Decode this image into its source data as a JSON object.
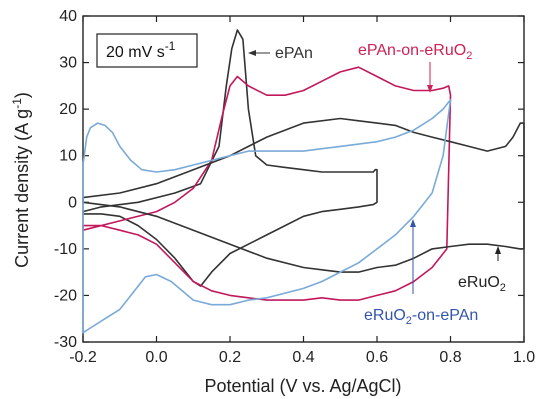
{
  "chart_data": {
    "type": "line",
    "xlabel": "Potential (V vs. Ag/AgCl)",
    "ylabel": "Current density (A g",
    "ylabel_sup": "-1",
    "ylabel_tail": ")",
    "xlim": [
      -0.2,
      1.0
    ],
    "ylim": [
      -30,
      40
    ],
    "xticks": [
      -0.2,
      0.0,
      0.2,
      0.4,
      0.6,
      0.8,
      1.0
    ],
    "xtick_labels": [
      "-0.2",
      "0.0",
      "0.2",
      "0.4",
      "0.6",
      "0.8",
      "1.0"
    ],
    "yticks": [
      -30,
      -20,
      -10,
      0,
      10,
      20,
      30,
      40
    ],
    "ytick_labels": [
      "-30",
      "-20",
      "-10",
      "0",
      "10",
      "20",
      "30",
      "40"
    ],
    "grid": false,
    "legend": "none",
    "scan_rate_label": {
      "text": "20 mV s",
      "sup": "-1"
    },
    "annotations": [
      {
        "series": "ePAn",
        "text": "ePAn",
        "color": "#333333"
      },
      {
        "series": "ePAn-on-eRuO2",
        "text": "ePAn-on-eRuO",
        "sub": "2",
        "color": "#cc2255"
      },
      {
        "series": "eRuO2",
        "text": "eRuO",
        "sub": "2",
        "color": "#222222"
      },
      {
        "series": "eRuO2-on-ePAn",
        "text": "eRuO",
        "sub": "2",
        "tail": "-on-ePAn",
        "color": "#3355aa"
      }
    ],
    "series": [
      {
        "name": "ePAn",
        "color": "#333333",
        "x": [
          -0.2,
          -0.15,
          -0.05,
          0.05,
          0.12,
          0.17,
          0.19,
          0.205,
          0.22,
          0.235,
          0.25,
          0.27,
          0.3,
          0.35,
          0.4,
          0.45,
          0.5,
          0.55,
          0.59,
          0.595,
          0.6,
          0.6,
          0.59,
          0.55,
          0.5,
          0.45,
          0.4,
          0.35,
          0.3,
          0.25,
          0.2,
          0.15,
          0.12,
          0.1,
          0.05,
          0.0,
          -0.05,
          -0.1,
          -0.15,
          -0.2,
          -0.2
        ],
        "y": [
          -2,
          -1,
          0,
          2,
          4,
          12,
          25,
          33,
          37,
          35,
          20,
          10,
          8,
          7.5,
          7,
          6.5,
          6.5,
          6.5,
          6.5,
          7,
          7,
          0,
          -0.5,
          -1,
          -1.5,
          -2,
          -3,
          -5,
          -7,
          -9,
          -11,
          -15,
          -18,
          -17,
          -12,
          -8,
          -5,
          -3,
          -2.5,
          -2.5,
          -2
        ]
      },
      {
        "name": "ePAn-on-eRuO2",
        "color": "#c2185b",
        "x": [
          -0.2,
          -0.1,
          0.0,
          0.05,
          0.1,
          0.15,
          0.18,
          0.2,
          0.22,
          0.25,
          0.3,
          0.35,
          0.4,
          0.45,
          0.5,
          0.55,
          0.6,
          0.65,
          0.7,
          0.75,
          0.78,
          0.795,
          0.8,
          0.79,
          0.75,
          0.7,
          0.65,
          0.6,
          0.55,
          0.5,
          0.45,
          0.4,
          0.35,
          0.3,
          0.25,
          0.2,
          0.15,
          0.1,
          0.05,
          0.0,
          -0.05,
          -0.1,
          -0.15,
          -0.2,
          -0.2
        ],
        "y": [
          -6,
          -4,
          -2,
          0,
          3,
          9,
          19,
          25,
          27,
          25,
          23,
          23,
          24,
          26,
          28,
          29,
          27,
          25,
          24,
          24,
          24.5,
          25,
          23,
          -10,
          -14,
          -17,
          -19,
          -20,
          -21,
          -21,
          -20.5,
          -21,
          -21,
          -21,
          -20.5,
          -20,
          -19,
          -17,
          -13,
          -9,
          -7,
          -6,
          -5,
          -5,
          -6
        ]
      },
      {
        "name": "eRuO2",
        "color": "#333333",
        "x": [
          -0.2,
          -0.1,
          0.0,
          0.1,
          0.2,
          0.3,
          0.4,
          0.5,
          0.55,
          0.6,
          0.65,
          0.7,
          0.75,
          0.8,
          0.85,
          0.9,
          0.95,
          0.97,
          0.99,
          1.0,
          1.0,
          0.99,
          0.95,
          0.9,
          0.85,
          0.8,
          0.75,
          0.7,
          0.65,
          0.6,
          0.55,
          0.5,
          0.45,
          0.4,
          0.3,
          0.2,
          0.1,
          0.0,
          -0.1,
          -0.2,
          -0.2
        ],
        "y": [
          1,
          2,
          4,
          7,
          10,
          14,
          17,
          18,
          17.5,
          17,
          16.5,
          15,
          14,
          13,
          12,
          11,
          12,
          14,
          17,
          17,
          -10,
          -10,
          -9.5,
          -9,
          -9,
          -9.5,
          -10,
          -12,
          -13.5,
          -14,
          -15,
          -15,
          -14.5,
          -14,
          -12,
          -9,
          -6,
          -3,
          -1,
          0,
          1
        ]
      },
      {
        "name": "eRuO2-on-ePAn",
        "color": "#7aaad8",
        "x": [
          -0.2,
          -0.19,
          -0.18,
          -0.16,
          -0.14,
          -0.12,
          -0.1,
          -0.07,
          -0.04,
          0.0,
          0.05,
          0.1,
          0.15,
          0.2,
          0.25,
          0.3,
          0.35,
          0.4,
          0.45,
          0.5,
          0.55,
          0.6,
          0.65,
          0.7,
          0.75,
          0.78,
          0.8,
          0.78,
          0.75,
          0.7,
          0.65,
          0.6,
          0.55,
          0.5,
          0.45,
          0.4,
          0.35,
          0.3,
          0.25,
          0.2,
          0.15,
          0.1,
          0.07,
          0.04,
          0.0,
          -0.03,
          -0.06,
          -0.1,
          -0.14,
          -0.18,
          -0.2,
          -0.2
        ],
        "y": [
          8,
          14,
          16,
          17,
          16.5,
          15,
          12,
          9,
          7,
          6.5,
          7,
          8,
          9,
          10,
          11,
          11,
          11,
          11,
          11.5,
          12,
          12.5,
          13,
          14,
          15.5,
          18,
          20,
          22,
          10,
          2,
          -3,
          -7,
          -10,
          -13,
          -15,
          -17,
          -18.5,
          -19.5,
          -20.5,
          -21,
          -22,
          -22,
          -21,
          -19,
          -17,
          -15.5,
          -16,
          -19,
          -23,
          -25,
          -27,
          -28,
          8
        ]
      }
    ]
  }
}
